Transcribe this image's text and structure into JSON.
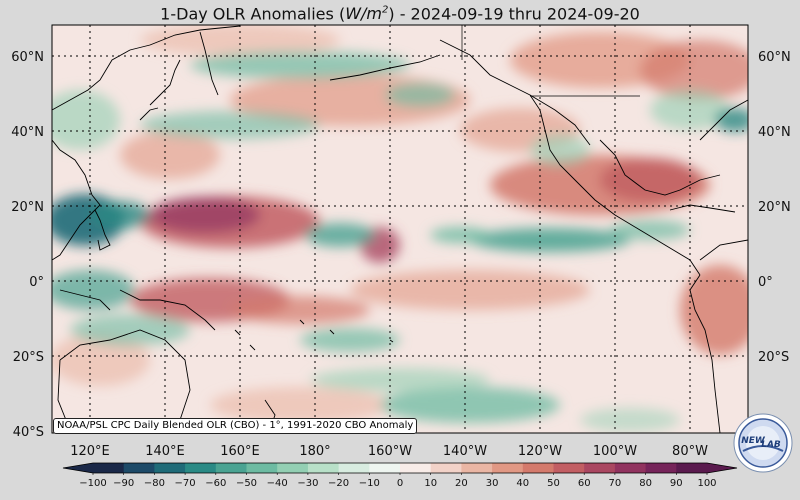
{
  "title": {
    "prefix": "1-Day OLR Anomalies (",
    "unit_base": "W/m",
    "unit_exp": "2",
    "suffix": ") - 2024-09-19 thru 2024-09-20"
  },
  "map": {
    "lat_labels": [
      "60°N",
      "40°N",
      "20°N",
      "0°",
      "20°S",
      "40°S"
    ],
    "lon_labels": [
      "120°E",
      "140°E",
      "160°E",
      "180°",
      "160°W",
      "140°W",
      "120°W",
      "100°W",
      "80°W"
    ],
    "credit": "NOAA/PSL CPC Daily Blended OLR (CBO) - 1°, 1991-2020 CBO Anomaly",
    "ocean_color": "#f5e6e2"
  },
  "colorbar": {
    "ticks": [
      "−100",
      "−90",
      "−80",
      "−70",
      "−60",
      "−50",
      "−40",
      "−30",
      "−20",
      "−10",
      "0",
      "10",
      "20",
      "30",
      "40",
      "50",
      "60",
      "70",
      "80",
      "90",
      "100"
    ],
    "colors": [
      "#1a2848",
      "#1d4a68",
      "#1f6b78",
      "#2a8a85",
      "#4aa392",
      "#6dbba2",
      "#93cfb3",
      "#b8e0c8",
      "#d8ece0",
      "#eef5f0",
      "#f8ece8",
      "#f2d2c8",
      "#eab6a4",
      "#e19884",
      "#d47a6c",
      "#c25e63",
      "#aa4761",
      "#91335f",
      "#76245a",
      "#5a1a4e"
    ]
  },
  "logo": {
    "text_a": "NEW",
    "text_b": "LAB"
  }
}
